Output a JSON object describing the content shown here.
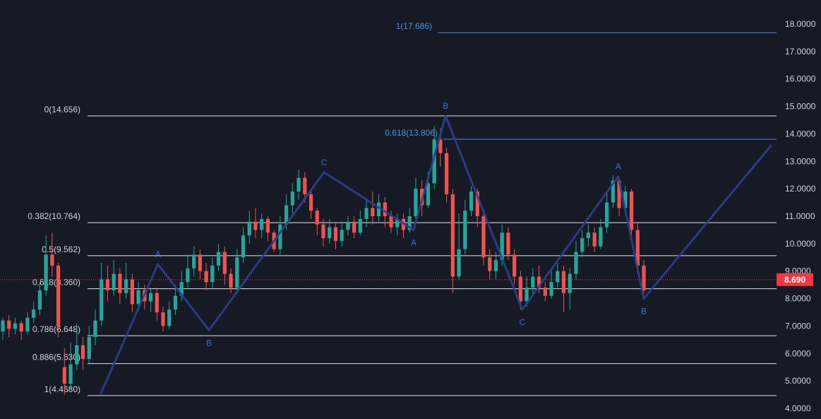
{
  "chart_data": {
    "type": "candlestick",
    "ylim": [
      4.0,
      18.0
    ],
    "y_ticks": [
      "4.0000",
      "5.0000",
      "6.0000",
      "7.0000",
      "8.0000",
      "9.0000",
      "10.0000",
      "11.0000",
      "12.0000",
      "13.0000",
      "14.0000",
      "15.0000",
      "16.0000",
      "17.0000",
      "18.0000"
    ],
    "last_price": 8.69,
    "last_price_label": "8.690",
    "colors": {
      "background": "#161a25",
      "up": "#26a69a",
      "down": "#ef5350",
      "fib_line": "#e6e6e6",
      "wave_line": "#2c3f8f",
      "label_blue": "#3d6fd8",
      "projection": "#4f8fe0",
      "price_tag": "#f23645"
    },
    "fib_levels": [
      {
        "label": "0(14.656)",
        "value": 14.656
      },
      {
        "label": "0.382(10.764)",
        "value": 10.764
      },
      {
        "label": "0.5(9.562)",
        "value": 9.562
      },
      {
        "label": "0.618(8.360)",
        "value": 8.36
      },
      {
        "label": "0.786(6.648)",
        "value": 6.648
      },
      {
        "label": "0.886(5.630)",
        "value": 5.63
      },
      {
        "label": "1(4.4680)",
        "value": 4.468
      }
    ],
    "projection_levels": [
      {
        "label": "1(17.686)",
        "value": 17.686
      },
      {
        "label": "0.618(13.806)",
        "value": 13.806
      }
    ],
    "wave_points": [
      {
        "x": 0.02,
        "y": 4.5
      },
      {
        "x": 0.11,
        "y": 9.25,
        "label": "A"
      },
      {
        "x": 0.19,
        "y": 6.85,
        "label": "B"
      },
      {
        "x": 0.37,
        "y": 12.6,
        "label": "C"
      },
      {
        "x": 0.51,
        "y": 10.5,
        "label": "A"
      },
      {
        "x": 0.56,
        "y": 14.65,
        "label": "B"
      },
      {
        "x": 0.68,
        "y": 7.6,
        "label": "C"
      },
      {
        "x": 0.83,
        "y": 12.45,
        "label": "A"
      },
      {
        "x": 0.87,
        "y": 8.0,
        "label": "B"
      },
      {
        "x": 1.07,
        "y": 13.6
      }
    ],
    "candles": [
      [
        6.8,
        7.2,
        7.3,
        6.5
      ],
      [
        7.2,
        6.9,
        7.4,
        6.6
      ],
      [
        6.9,
        7.1,
        7.3,
        6.7
      ],
      [
        7.1,
        6.8,
        7.2,
        6.5
      ],
      [
        6.8,
        7.3,
        7.5,
        6.7
      ],
      [
        7.3,
        7.6,
        7.9,
        7.1
      ],
      [
        7.6,
        8.3,
        8.6,
        7.4
      ],
      [
        8.3,
        9.6,
        10.3,
        8.1
      ],
      [
        9.6,
        9.2,
        10.4,
        8.8
      ],
      [
        9.2,
        7.0,
        9.3,
        6.6
      ],
      [
        5.5,
        4.9,
        6.2,
        4.5
      ],
      [
        4.9,
        5.6,
        6.4,
        4.7
      ],
      [
        5.6,
        6.3,
        7.1,
        5.4
      ],
      [
        6.3,
        5.8,
        6.6,
        5.4
      ],
      [
        5.8,
        6.6,
        7.0,
        5.6
      ],
      [
        6.6,
        7.2,
        7.6,
        6.3
      ],
      [
        7.2,
        8.7,
        9.3,
        7.0
      ],
      [
        8.7,
        8.3,
        9.2,
        7.9
      ],
      [
        8.3,
        8.9,
        9.4,
        8.1
      ],
      [
        8.9,
        8.2,
        9.1,
        7.8
      ],
      [
        8.2,
        8.7,
        9.3,
        8.0
      ],
      [
        8.7,
        7.8,
        8.9,
        7.5
      ],
      [
        7.8,
        8.3,
        8.6,
        7.6
      ],
      [
        8.3,
        7.9,
        8.5,
        7.6
      ],
      [
        7.9,
        8.2,
        8.4,
        7.5
      ],
      [
        8.2,
        7.5,
        8.4,
        7.2
      ],
      [
        7.5,
        7.0,
        7.7,
        6.8
      ],
      [
        7.0,
        7.6,
        7.9,
        6.9
      ],
      [
        7.6,
        8.1,
        8.5,
        7.4
      ],
      [
        8.1,
        8.6,
        9.0,
        7.9
      ],
      [
        8.6,
        9.1,
        9.6,
        8.4
      ],
      [
        9.1,
        9.6,
        9.9,
        8.8
      ],
      [
        9.6,
        9.0,
        9.8,
        8.7
      ],
      [
        9.0,
        8.6,
        9.3,
        8.3
      ],
      [
        8.6,
        9.2,
        9.5,
        8.4
      ],
      [
        9.2,
        9.7,
        10.0,
        9.0
      ],
      [
        9.7,
        8.9,
        9.9,
        8.5
      ],
      [
        8.9,
        8.4,
        9.1,
        8.2
      ],
      [
        8.4,
        9.5,
        9.8,
        8.2
      ],
      [
        9.5,
        10.3,
        10.6,
        9.3
      ],
      [
        10.3,
        10.8,
        11.2,
        10.0
      ],
      [
        10.8,
        10.5,
        11.3,
        10.2
      ],
      [
        10.5,
        10.9,
        11.1,
        10.2
      ],
      [
        10.9,
        10.4,
        11.0,
        10.1
      ],
      [
        10.4,
        9.8,
        10.5,
        9.7
      ],
      [
        9.8,
        10.7,
        11.0,
        9.6
      ],
      [
        10.7,
        11.4,
        11.8,
        10.5
      ],
      [
        11.4,
        11.9,
        12.2,
        11.1
      ],
      [
        11.9,
        12.4,
        12.7,
        11.6
      ],
      [
        12.4,
        11.8,
        12.6,
        11.5
      ],
      [
        11.8,
        11.2,
        12.0,
        10.9
      ],
      [
        11.2,
        10.7,
        11.3,
        10.3
      ],
      [
        10.7,
        10.2,
        10.9,
        9.9
      ],
      [
        10.2,
        10.6,
        10.9,
        10.0
      ],
      [
        10.6,
        10.1,
        10.8,
        9.8
      ],
      [
        10.1,
        10.5,
        10.8,
        9.9
      ],
      [
        10.5,
        10.8,
        11.0,
        10.3
      ],
      [
        10.8,
        10.4,
        11.0,
        10.2
      ],
      [
        10.4,
        10.9,
        11.2,
        10.3
      ],
      [
        10.9,
        11.3,
        11.6,
        10.6
      ],
      [
        11.3,
        11.0,
        11.9,
        10.7
      ],
      [
        11.0,
        11.5,
        11.8,
        10.8
      ],
      [
        11.5,
        11.0,
        11.7,
        10.6
      ],
      [
        11.0,
        10.6,
        11.2,
        10.4
      ],
      [
        10.6,
        10.9,
        11.1,
        10.3
      ],
      [
        10.9,
        10.5,
        11.1,
        10.2
      ],
      [
        10.5,
        11.0,
        11.3,
        10.4
      ],
      [
        11.0,
        12.0,
        12.4,
        10.9
      ],
      [
        12.0,
        11.4,
        12.3,
        11.0
      ],
      [
        11.4,
        12.2,
        12.6,
        11.3
      ],
      [
        12.2,
        13.8,
        14.3,
        12.0
      ],
      [
        13.8,
        13.3,
        14.2,
        12.8
      ],
      [
        13.3,
        11.8,
        13.5,
        11.5
      ],
      [
        11.8,
        8.8,
        12.0,
        8.2
      ],
      [
        8.8,
        9.8,
        11.1,
        8.7
      ],
      [
        9.8,
        11.2,
        11.6,
        9.6
      ],
      [
        11.2,
        11.9,
        12.1,
        11.0
      ],
      [
        11.9,
        11.0,
        12.0,
        10.6
      ],
      [
        11.0,
        9.5,
        11.1,
        9.2
      ],
      [
        9.5,
        9.0,
        9.8,
        8.7
      ],
      [
        9.0,
        9.4,
        9.7,
        8.7
      ],
      [
        9.4,
        10.4,
        10.7,
        9.2
      ],
      [
        10.4,
        9.6,
        10.6,
        9.4
      ],
      [
        9.6,
        8.8,
        9.8,
        8.5
      ],
      [
        8.8,
        7.9,
        9.0,
        7.6
      ],
      [
        7.9,
        8.4,
        8.8,
        7.7
      ],
      [
        8.4,
        8.8,
        9.1,
        8.1
      ],
      [
        8.8,
        8.4,
        9.2,
        8.2
      ],
      [
        8.4,
        8.1,
        8.6,
        7.9
      ],
      [
        8.1,
        8.6,
        9.0,
        8.0
      ],
      [
        8.6,
        9.0,
        9.3,
        8.4
      ],
      [
        9.0,
        8.2,
        9.2,
        7.5
      ],
      [
        8.2,
        8.9,
        9.1,
        7.6
      ],
      [
        8.9,
        9.7,
        10.1,
        8.7
      ],
      [
        9.7,
        10.2,
        10.5,
        9.5
      ],
      [
        10.2,
        10.4,
        10.7,
        9.9
      ],
      [
        10.4,
        9.9,
        10.6,
        9.7
      ],
      [
        9.9,
        10.6,
        10.9,
        9.8
      ],
      [
        10.6,
        11.5,
        11.9,
        10.4
      ],
      [
        11.5,
        12.3,
        12.5,
        11.3
      ],
      [
        12.3,
        11.3,
        12.4,
        11.0
      ],
      [
        11.3,
        11.9,
        12.1,
        11.1
      ],
      [
        11.9,
        10.5,
        12.0,
        10.3
      ],
      [
        10.5,
        9.2,
        10.8,
        8.9
      ],
      [
        9.2,
        8.3,
        9.4,
        8.2
      ]
    ]
  }
}
